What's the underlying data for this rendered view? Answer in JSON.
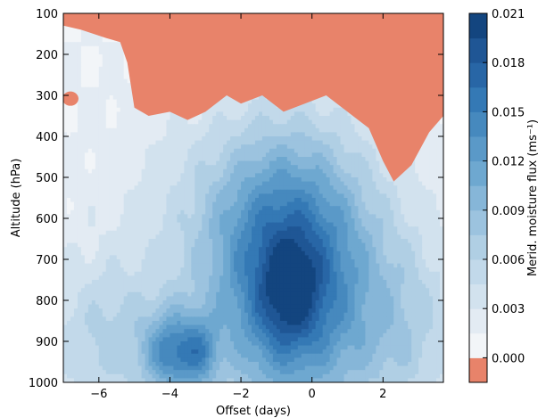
{
  "chart_data": {
    "type": "heatmap",
    "subtype": "filled-contour",
    "xlabel": "Offset (days)",
    "ylabel": "Altitude (hPa)",
    "colorbar_label": "Merid. moisture flux (ms⁻¹)",
    "xlim": [
      -7,
      3.7
    ],
    "ylim": [
      1000,
      100
    ],
    "y_inverted": true,
    "grid": false,
    "x_ticks": [
      -6,
      -4,
      -2,
      0,
      2
    ],
    "x_tick_labels": [
      "−6",
      "−4",
      "−2",
      "0",
      "2"
    ],
    "y_ticks": [
      100,
      200,
      300,
      400,
      500,
      600,
      700,
      800,
      900,
      1000
    ],
    "y_tick_labels": [
      "100",
      "200",
      "300",
      "400",
      "500",
      "600",
      "700",
      "800",
      "900",
      "1000"
    ],
    "colorbar": {
      "levels": [
        -0.0015,
        0.0,
        0.0015,
        0.003,
        0.0045,
        0.006,
        0.0075,
        0.009,
        0.0105,
        0.012,
        0.0135,
        0.015,
        0.0165,
        0.018,
        0.0195,
        0.021
      ],
      "colors": [
        "#e8836a",
        "#f2f5f8",
        "#e3ebf3",
        "#d2e2ee",
        "#c2d9ea",
        "#b0cfe4",
        "#9cc3df",
        "#86b6d8",
        "#6ea8d0",
        "#5a99c8",
        "#4689be",
        "#3479b5",
        "#2866a6",
        "#1f5695",
        "#13457f"
      ],
      "tick_values": [
        0.0,
        0.003,
        0.006,
        0.009,
        0.012,
        0.015,
        0.018,
        0.021
      ],
      "tick_labels": [
        "0.000",
        "0.003",
        "0.006",
        "0.009",
        "0.012",
        "0.015",
        "0.018",
        "0.021"
      ]
    },
    "field": {
      "background_value": 0.0015,
      "top_negative_boundary": [
        [
          -7,
          130
        ],
        [
          -6.5,
          140
        ],
        [
          -5.8,
          160
        ],
        [
          -5.4,
          170
        ],
        [
          -5.2,
          220
        ],
        [
          -5.0,
          330
        ],
        [
          -4.6,
          350
        ],
        [
          -4.0,
          340
        ],
        [
          -3.5,
          360
        ],
        [
          -3.0,
          340
        ],
        [
          -2.4,
          300
        ],
        [
          -2.0,
          320
        ],
        [
          -1.4,
          300
        ],
        [
          -0.8,
          340
        ],
        [
          -0.2,
          320
        ],
        [
          0.4,
          300
        ],
        [
          1.0,
          340
        ],
        [
          1.6,
          380
        ],
        [
          2.0,
          460
        ],
        [
          2.3,
          510
        ],
        [
          2.8,
          470
        ],
        [
          3.3,
          390
        ],
        [
          3.7,
          350
        ]
      ],
      "isolated_negative": [
        {
          "x": -6.8,
          "p": 308
        }
      ],
      "components": [
        {
          "x": -0.6,
          "p": 760,
          "amplitude": 0.0155,
          "sx": 1.6,
          "sp": 230
        },
        {
          "x": -0.6,
          "p": 780,
          "amplitude": 0.0052,
          "sx": 0.55,
          "sp": 85
        },
        {
          "x": -3.9,
          "p": 930,
          "amplitude": 0.0095,
          "sx": 0.55,
          "sp": 70
        },
        {
          "x": -3.1,
          "p": 930,
          "amplitude": 0.0055,
          "sx": 0.35,
          "sp": 60
        },
        {
          "x": -5.6,
          "p": 900,
          "amplitude": 0.005,
          "sx": 1.5,
          "sp": 140
        },
        {
          "x": 2.6,
          "p": 880,
          "amplitude": 0.0045,
          "sx": 1.2,
          "sp": 170
        },
        {
          "x": -1.6,
          "p": 560,
          "amplitude": 0.003,
          "sx": 2.5,
          "sp": 160
        }
      ]
    }
  }
}
